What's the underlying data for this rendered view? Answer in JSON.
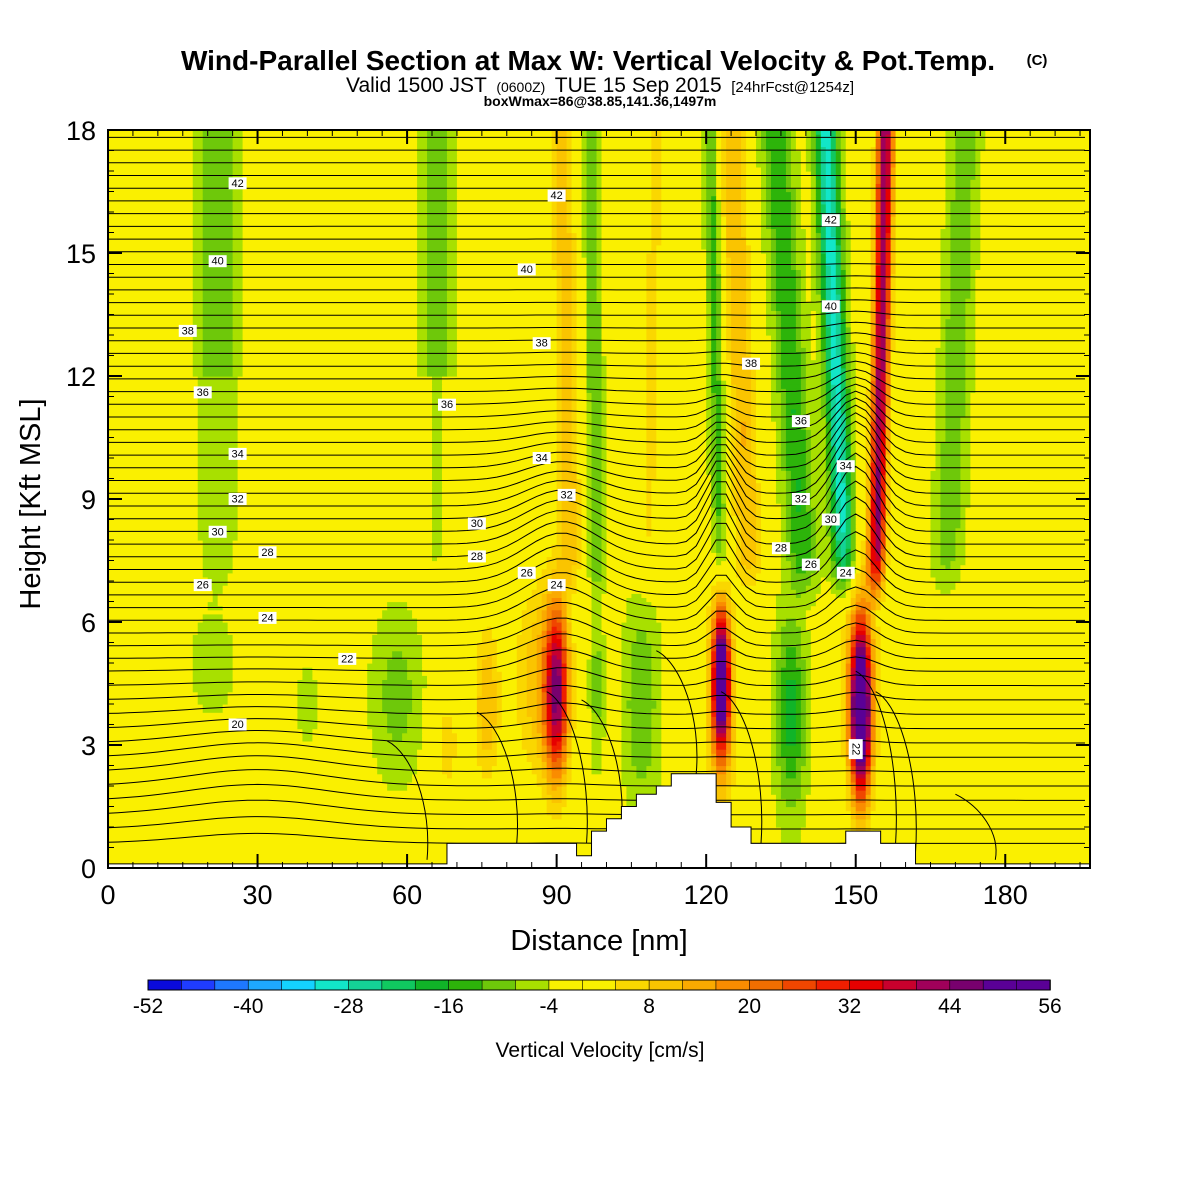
{
  "title": "Wind-Parallel Section at Max W: Vertical Velocity & Pot.Temp.",
  "copyright": "(C)",
  "subtitle": {
    "valid": "Valid 1500 JST",
    "utc": "(0600Z)",
    "date": "TUE 15 Sep 2015",
    "forecast": "[24hrFcst@1254z]"
  },
  "box_info": "boxWmax=86@38.85,141.36,1497m",
  "chart_data": {
    "type": "heatmap",
    "xlabel": "Distance [nm]",
    "ylabel": "Height [Kft MSL]",
    "xlim": [
      0,
      197
    ],
    "ylim": [
      0,
      18
    ],
    "x_ticks": [
      0,
      30,
      60,
      90,
      120,
      150,
      180
    ],
    "y_ticks": [
      0,
      3,
      6,
      9,
      12,
      15,
      18
    ],
    "colorbar": {
      "label": "Vertical Velocity [cm/s]",
      "min": -52,
      "max": 56,
      "step": 4,
      "tick_values": [
        -52,
        -40,
        -28,
        -16,
        -4,
        8,
        20,
        32,
        44,
        56
      ],
      "colors": [
        "#0a0adc",
        "#1f3cff",
        "#1e78ff",
        "#1ea8ff",
        "#14d2ff",
        "#12e6c8",
        "#14d296",
        "#10c860",
        "#10b428",
        "#2db40a",
        "#6ec80a",
        "#a8e000",
        "#faf000",
        "#faf000",
        "#fad700",
        "#fac400",
        "#faaa00",
        "#fa8c00",
        "#f06e00",
        "#f04600",
        "#f01e00",
        "#e60000",
        "#c8002d",
        "#a0005a",
        "#78006e",
        "#5a0096"
      ],
      "tick_labels": [
        "-52",
        "-40",
        "-28",
        "-16",
        "-4",
        "8",
        "20",
        "32",
        "44",
        "56"
      ]
    },
    "theta_contours": {
      "label_texts": [
        "42",
        "42",
        "42",
        "40",
        "40",
        "40",
        "38",
        "38",
        "38",
        "36",
        "36",
        "36",
        "34",
        "34",
        "34",
        "32",
        "32",
        "32",
        "30",
        "30",
        "30",
        "28",
        "28",
        "28",
        "26",
        "26",
        "26",
        "24",
        "24",
        "24",
        "22",
        "22",
        "20"
      ]
    },
    "w_features": [
      {
        "x": 90,
        "ytop": 6.8,
        "w": 36,
        "kind": "updraft"
      },
      {
        "x": 76,
        "ytop": 4.5,
        "w": 16,
        "kind": "updraft"
      },
      {
        "x": 123,
        "ytop": 6.9,
        "w": 56,
        "kind": "updraft"
      },
      {
        "x": 151,
        "ytop": 6.6,
        "w": 56,
        "kind": "updraft"
      },
      {
        "x": 137,
        "ytop": 5.5,
        "w": -14,
        "kind": "downdraft"
      },
      {
        "x": 107,
        "ytop": 6.2,
        "w": -8,
        "kind": "downdraft"
      }
    ]
  }
}
